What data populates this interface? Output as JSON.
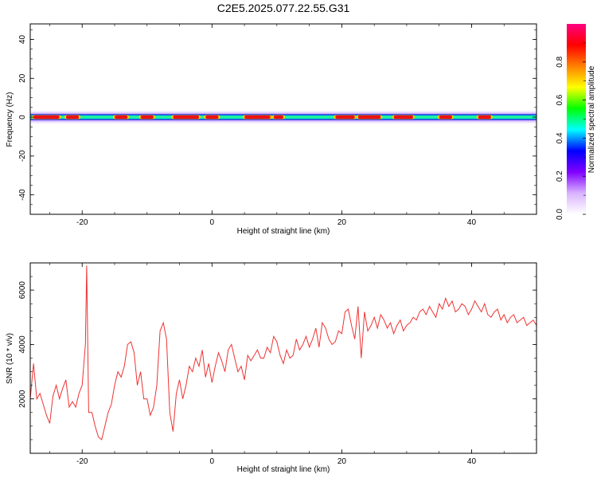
{
  "figure": {
    "title": "C2E5.2025.077.22.55.G31"
  },
  "chart_data": [
    {
      "type": "heatmap",
      "xlabel": "Height of straight line (km)",
      "ylabel": "Frequency (Hz)",
      "xlim": [
        -28,
        50
      ],
      "ylim": [
        -50,
        48
      ],
      "xticks": [
        -20,
        0,
        20,
        40
      ],
      "yticks": [
        -40,
        -20,
        0,
        20,
        40
      ],
      "band_center_hz": 0,
      "hot_segments_km": [
        [
          -27.5,
          -23.5
        ],
        [
          -22.5,
          -20.5
        ],
        [
          -15,
          -13
        ],
        [
          -11,
          -9
        ],
        [
          -6,
          -2
        ],
        [
          -1,
          1
        ],
        [
          5,
          9
        ],
        [
          9.5,
          11
        ],
        [
          19,
          22
        ],
        [
          22.5,
          26
        ],
        [
          28,
          31
        ],
        [
          35,
          37
        ],
        [
          41,
          43
        ]
      ],
      "colorbar": {
        "label": "Normalized spectral amplitude",
        "ticks": [
          "0.0",
          "0.2",
          "0.4",
          "0.6",
          "0.8"
        ],
        "range": [
          0,
          1
        ],
        "colors": [
          "#ffffff",
          "#d9b3ff",
          "#8000ff",
          "#0000ff",
          "#00ffff",
          "#00ff00",
          "#ffff00",
          "#ff8000",
          "#ff0000",
          "#ff0080"
        ]
      }
    },
    {
      "type": "line",
      "xlabel": "Height of straight line (km)",
      "ylabel": "SNR (10 * v/v)",
      "xlim": [
        -28,
        50
      ],
      "ylim": [
        0,
        7000
      ],
      "xticks": [
        -20,
        0,
        20,
        40
      ],
      "yticks": [
        2000,
        4000,
        6000
      ],
      "color": "#ee3333",
      "series": [
        {
          "x": [
            -28,
            -27.5,
            -27,
            -26.5,
            -26,
            -25.5,
            -25,
            -24.5,
            -24,
            -23.5,
            -23,
            -22.5,
            -22,
            -21.5,
            -21,
            -20.5,
            -20,
            -19.5,
            -19.3,
            -19,
            -18.5,
            -18,
            -17.5,
            -17,
            -16.5,
            -16,
            -15.5,
            -15,
            -14.5,
            -14,
            -13.5,
            -13,
            -12.5,
            -12,
            -11.5,
            -11,
            -10.5,
            -10,
            -9.5,
            -9,
            -8.5,
            -8,
            -7.5,
            -7,
            -6.5,
            -6,
            -5.5,
            -5,
            -4.5,
            -4,
            -3.5,
            -3,
            -2.5,
            -2,
            -1.5,
            -1,
            -0.5,
            0,
            0.5,
            1,
            1.5,
            2,
            2.5,
            3,
            3.5,
            4,
            4.5,
            5,
            5.5,
            6,
            6.5,
            7,
            7.5,
            8,
            8.5,
            9,
            9.5,
            10,
            10.5,
            11,
            11.5,
            12,
            12.5,
            13,
            13.5,
            14,
            14.5,
            15,
            15.5,
            16,
            16.5,
            17,
            17.5,
            18,
            18.5,
            19,
            19.5,
            20,
            20.5,
            21,
            21.5,
            22,
            22.5,
            23,
            23.5,
            24,
            24.5,
            25,
            25.5,
            26,
            26.5,
            27,
            27.5,
            28,
            28.5,
            29,
            29.5,
            30,
            30.5,
            31,
            31.5,
            32,
            32.5,
            33,
            33.5,
            34,
            34.5,
            35,
            35.5,
            36,
            36.5,
            37,
            37.5,
            38,
            38.5,
            39,
            39.5,
            40,
            40.5,
            41,
            41.5,
            42,
            42.5,
            43,
            43.5,
            44,
            44.5,
            45,
            45.5,
            46,
            46.5,
            47,
            47.5,
            48,
            48.5,
            49,
            49.5,
            50
          ],
          "y": [
            2000,
            3300,
            2000,
            2200,
            1800,
            1400,
            1100,
            2100,
            2500,
            2000,
            2400,
            2700,
            1700,
            1900,
            1700,
            2200,
            2500,
            4000,
            6900,
            1500,
            1500,
            1000,
            600,
            500,
            1000,
            1500,
            1800,
            2500,
            3000,
            2800,
            3200,
            4000,
            4100,
            3700,
            2500,
            3000,
            2000,
            2000,
            1400,
            1700,
            2500,
            4500,
            4800,
            4200,
            1500,
            800,
            2200,
            2700,
            2000,
            2500,
            3200,
            3000,
            3500,
            3200,
            3800,
            2800,
            3300,
            2600,
            3200,
            3700,
            3400,
            3000,
            3800,
            4000,
            3500,
            3000,
            3200,
            2700,
            3600,
            3400,
            3600,
            3800,
            3500,
            3500,
            3900,
            3700,
            4300,
            4100,
            3600,
            3300,
            3800,
            3500,
            3600,
            4200,
            3800,
            4000,
            4300,
            3900,
            4200,
            4600,
            3900,
            4800,
            4600,
            4200,
            4000,
            4100,
            4500,
            4400,
            5200,
            5300,
            4700,
            4200,
            5400,
            3500,
            5200,
            4500,
            4700,
            5000,
            4600,
            5100,
            4900,
            4600,
            4800,
            4400,
            4700,
            4900,
            4500,
            4700,
            4800,
            5000,
            4900,
            5200,
            5300,
            5100,
            5400,
            5200,
            5000,
            5500,
            5300,
            5700,
            5400,
            5600,
            5200,
            5300,
            5500,
            5400,
            5100,
            5300,
            5600,
            5400,
            5200,
            5500,
            5100,
            5000,
            5200,
            5300,
            4900,
            5100,
            4800,
            5000,
            5100,
            4800,
            4900,
            5000,
            4700,
            4800,
            4900,
            4700
          ]
        }
      ]
    }
  ]
}
